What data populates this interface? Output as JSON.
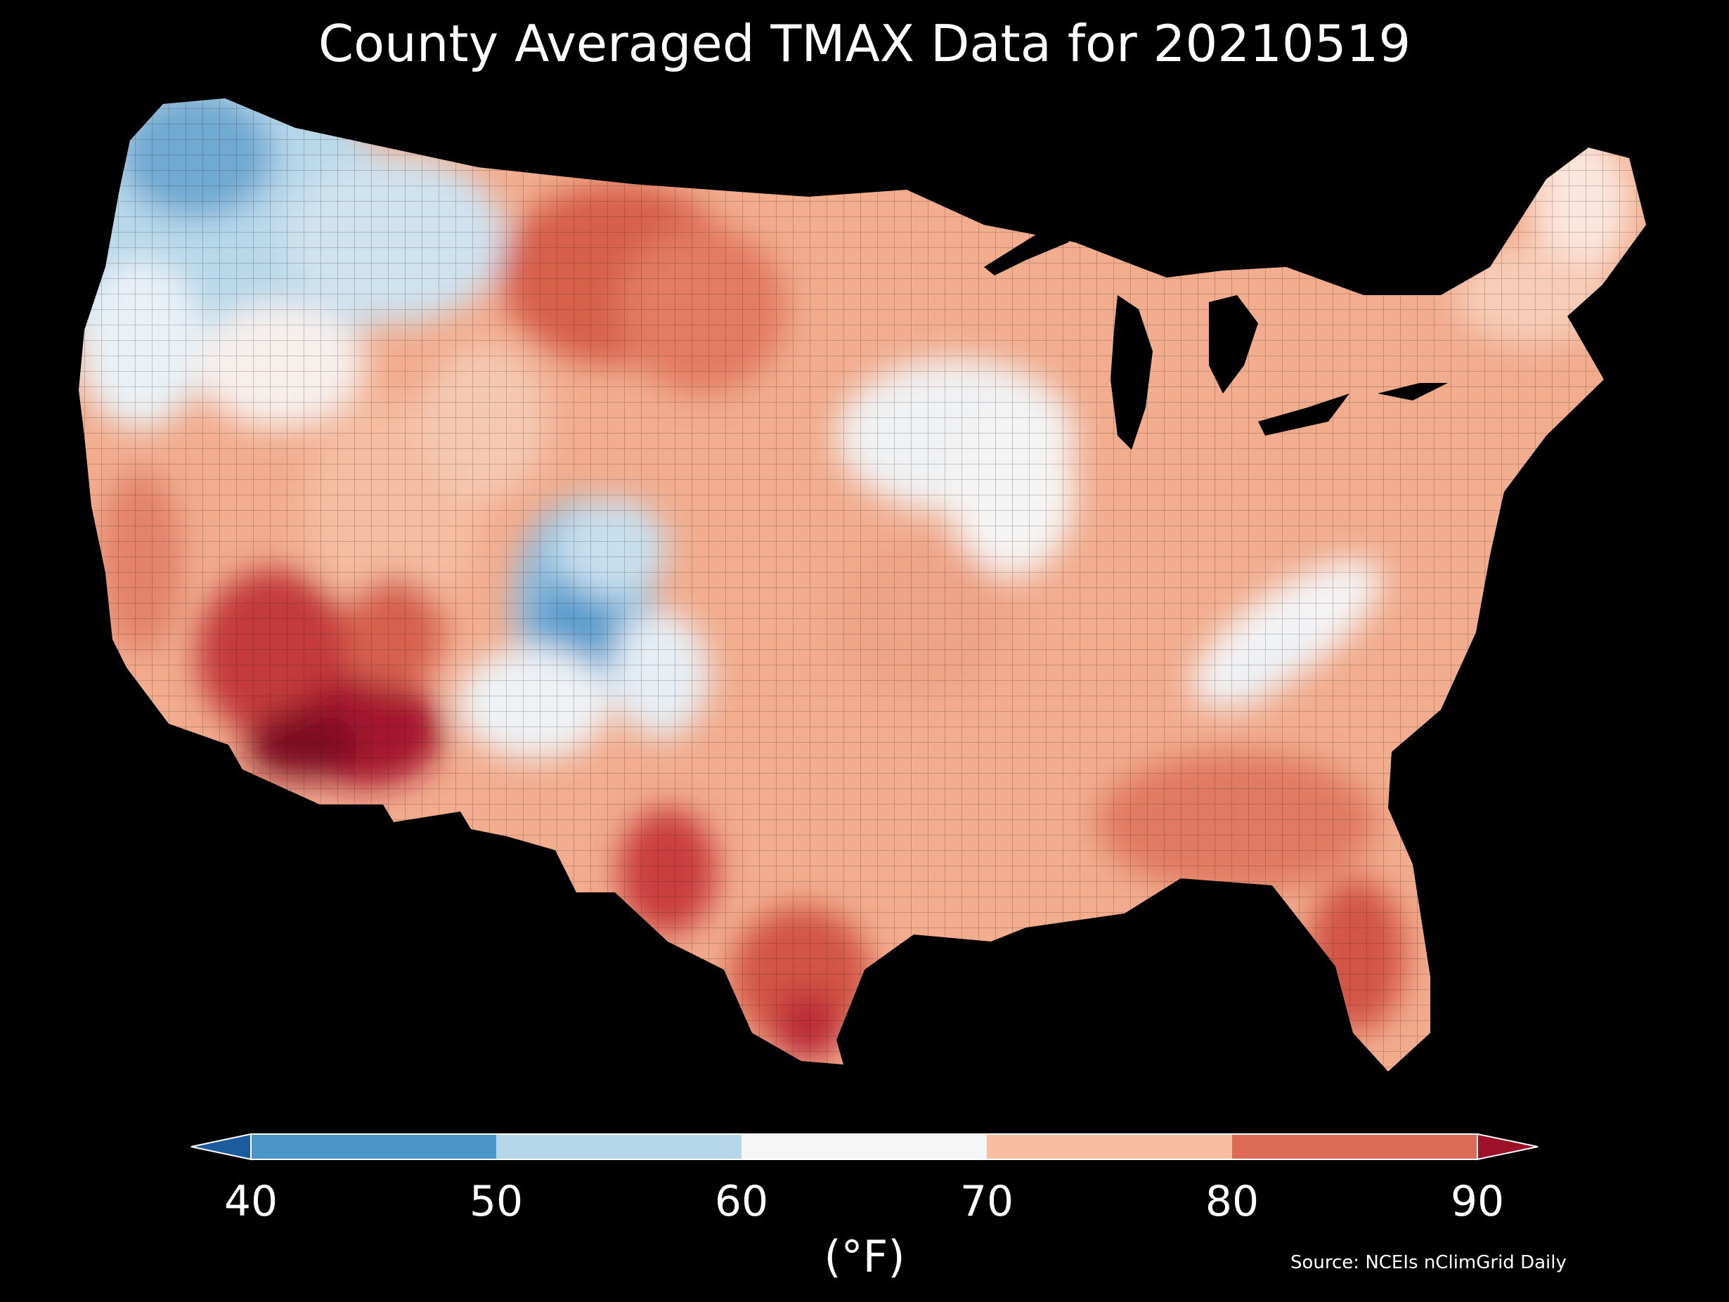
{
  "title": "County Averaged TMAX Data for 20210519",
  "source": "Source: NCEIs nClimGrid Daily",
  "colorbar": {
    "unit_label": "(°F)",
    "ticks": [
      "40",
      "50",
      "60",
      "70",
      "80",
      "90"
    ],
    "bins": [
      {
        "range": "<40",
        "color": "#1c5c9e"
      },
      {
        "range": "40-50",
        "color": "#4a96c8"
      },
      {
        "range": "50-60",
        "color": "#b5d6e8"
      },
      {
        "range": "60-70",
        "color": "#f6f6f6"
      },
      {
        "range": "70-80",
        "color": "#f8bea0"
      },
      {
        "range": "80-90",
        "color": "#dd6a55"
      },
      {
        "range": ">90",
        "color": "#9c1127"
      }
    ]
  },
  "map": {
    "background": "#000000",
    "region": "Contiguous United States counties"
  }
}
